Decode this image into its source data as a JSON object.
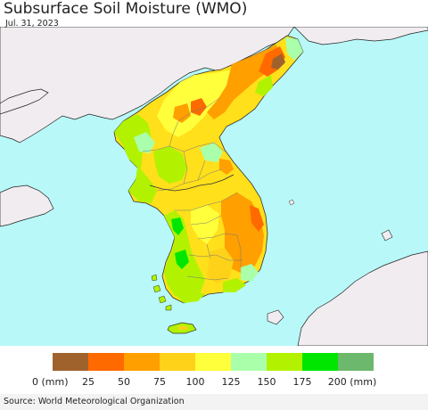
{
  "header": {
    "title": "Subsurface Soil Moisture (WMO)",
    "date": "Jul. 31, 2023"
  },
  "legend": {
    "colors": [
      "#a0622d",
      "#ff6a00",
      "#ff9f00",
      "#ffd21a",
      "#ffff3c",
      "#aaffaa",
      "#b2f200",
      "#00e600",
      "#6cb86c"
    ],
    "labels": [
      "0 (mm)",
      "25",
      "50",
      "75",
      "100",
      "125",
      "150",
      "175",
      "200 (mm)"
    ]
  },
  "map": {
    "sea_color": "#b8f8f8",
    "land_outside_color": "#f0ecef"
  },
  "footer": {
    "source": "Source: World Meteorological Organization"
  }
}
